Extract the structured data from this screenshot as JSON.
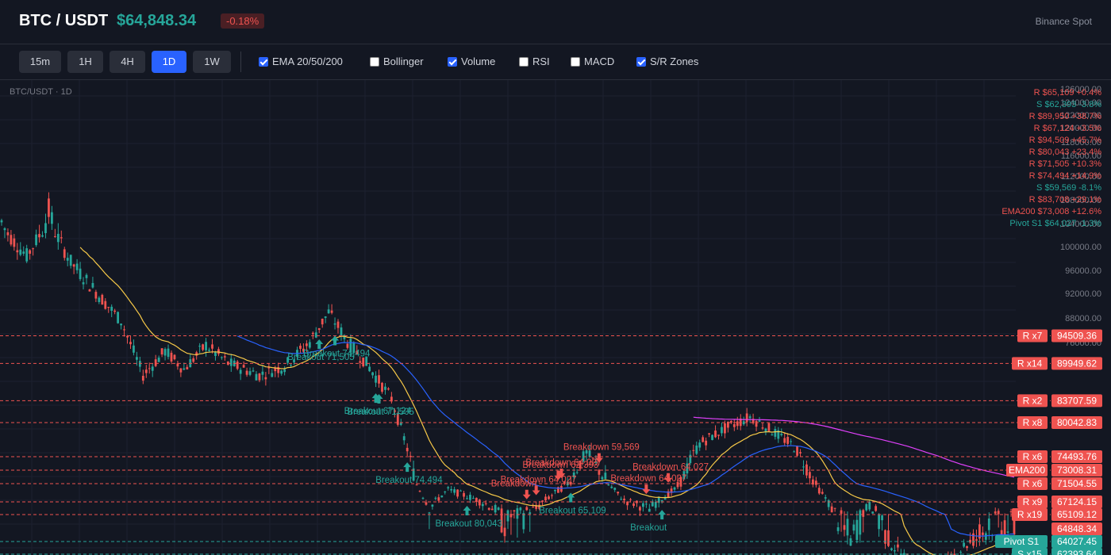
{
  "header": {
    "pair": "BTC / USDT",
    "price": "$64,848.34",
    "change": "-0.18%",
    "exchange": "Binance Spot"
  },
  "toolbar": {
    "timeframes": [
      "15m",
      "1H",
      "4H",
      "1D",
      "1W"
    ],
    "active_timeframe": "1D",
    "toggles": [
      {
        "label": "EMA 20/50/200",
        "checked": true
      },
      {
        "label": "Bollinger",
        "checked": false
      },
      {
        "label": "Volume",
        "checked": true
      },
      {
        "label": "RSI",
        "checked": false
      },
      {
        "label": "MACD",
        "checked": false
      },
      {
        "label": "S/R Zones",
        "checked": true
      }
    ]
  },
  "chart": {
    "label": "BTC/USDT · 1D",
    "colors": {
      "up": "#26a69a",
      "down": "#ef5350",
      "ema20": "#f7c948",
      "ema50": "#2962ff",
      "ema200": "#e040fb",
      "bg": "#131722"
    },
    "y_axis_ticks": [
      "126000.00",
      "124000.00",
      "122000.00",
      "120000.00",
      "118000.00",
      "116000.00",
      "112000.00",
      "108000.00",
      "104000.00",
      "100000.00",
      "96000.00",
      "92000.00",
      "88000.00",
      "76000.00"
    ],
    "zone_list": [
      {
        "text": "R $65,109 +0.4%",
        "kind": "R"
      },
      {
        "text": "S $62,393 -3.8%",
        "kind": "S"
      },
      {
        "text": "R $89,950 +38.7%",
        "kind": "R"
      },
      {
        "text": "R $67,124 +3.5%",
        "kind": "R"
      },
      {
        "text": "R $94,509 +45.7%",
        "kind": "R"
      },
      {
        "text": "R $80,043 +23.4%",
        "kind": "R"
      },
      {
        "text": "R $71,505 +10.3%",
        "kind": "R"
      },
      {
        "text": "R $74,494 +14.9%",
        "kind": "R"
      },
      {
        "text": "S $59,569 -8.1%",
        "kind": "S"
      },
      {
        "text": "R $83,708 +29.1%",
        "kind": "R"
      },
      {
        "text": "EMA200 $73,008 +12.6%",
        "kind": "R"
      },
      {
        "text": "Pivot S1 $64,027 -1.3%",
        "kind": "S"
      }
    ],
    "levels": [
      {
        "tag": "R x7",
        "value": "94509.36",
        "price": 94509.36,
        "kind": "R"
      },
      {
        "tag": "R x14",
        "value": "89949.62",
        "price": 89949.62,
        "kind": "R"
      },
      {
        "tag": "R x2",
        "value": "83707.59",
        "price": 83707.59,
        "kind": "R"
      },
      {
        "tag": "R x8",
        "value": "80042.83",
        "price": 80042.83,
        "kind": "R"
      },
      {
        "tag": "R x6",
        "value": "74493.76",
        "price": 74493.76,
        "kind": "R"
      },
      {
        "tag": "EMA200",
        "value": "73008.31",
        "price": 73008.31,
        "kind": "R"
      },
      {
        "tag": "R x6",
        "value": "71504.55",
        "price": 71504.55,
        "kind": "R"
      },
      {
        "tag": "R x9",
        "value": "67124.15",
        "price": 67124.15,
        "kind": "R"
      },
      {
        "tag": "R x19",
        "value": "65109.12",
        "price": 65109.12,
        "kind": "R"
      },
      {
        "tag": "",
        "value": "64848.34",
        "price": 64848.34,
        "kind": "P"
      },
      {
        "tag": "Pivot S1",
        "value": "64027.45",
        "price": 64027.45,
        "kind": "S"
      },
      {
        "tag": "S x15",
        "value": "62393.64",
        "price": 62393.64,
        "kind": "S"
      }
    ],
    "markers": [
      {
        "text": "Breakout 80,043",
        "kind": "up",
        "day": 148
      },
      {
        "text": "Breakout 74,494",
        "kind": "up",
        "day": 128
      },
      {
        "text": "Breakout 74,494",
        "kind": "up",
        "day": 106
      },
      {
        "text": "Breakout 71,505",
        "kind": "up",
        "day": 100
      },
      {
        "text": "Breakout 71,505",
        "kind": "up",
        "day": 120
      },
      {
        "text": "Breakout 67,124",
        "kind": "up",
        "day": 118
      },
      {
        "text": "Breakdown 64,027",
        "kind": "down",
        "day": 178
      },
      {
        "text": "Breakdown 64,027",
        "kind": "down",
        "day": 204
      },
      {
        "text": "Breakdown 64,027",
        "kind": "down",
        "day": 212
      },
      {
        "text": "Breakdown",
        "kind": "down",
        "day": 166
      },
      {
        "text": "Breakdown 64,027",
        "kind": "down",
        "day": 170
      },
      {
        "text": "Breakdown 62,393",
        "kind": "down",
        "day": 176
      },
      {
        "text": "Breakdown 59,569",
        "kind": "down",
        "day": 190
      },
      {
        "text": "Breakout 65,109",
        "kind": "up",
        "day": 180
      },
      {
        "text": "Breakout",
        "kind": "up",
        "day": 210
      }
    ]
  }
}
